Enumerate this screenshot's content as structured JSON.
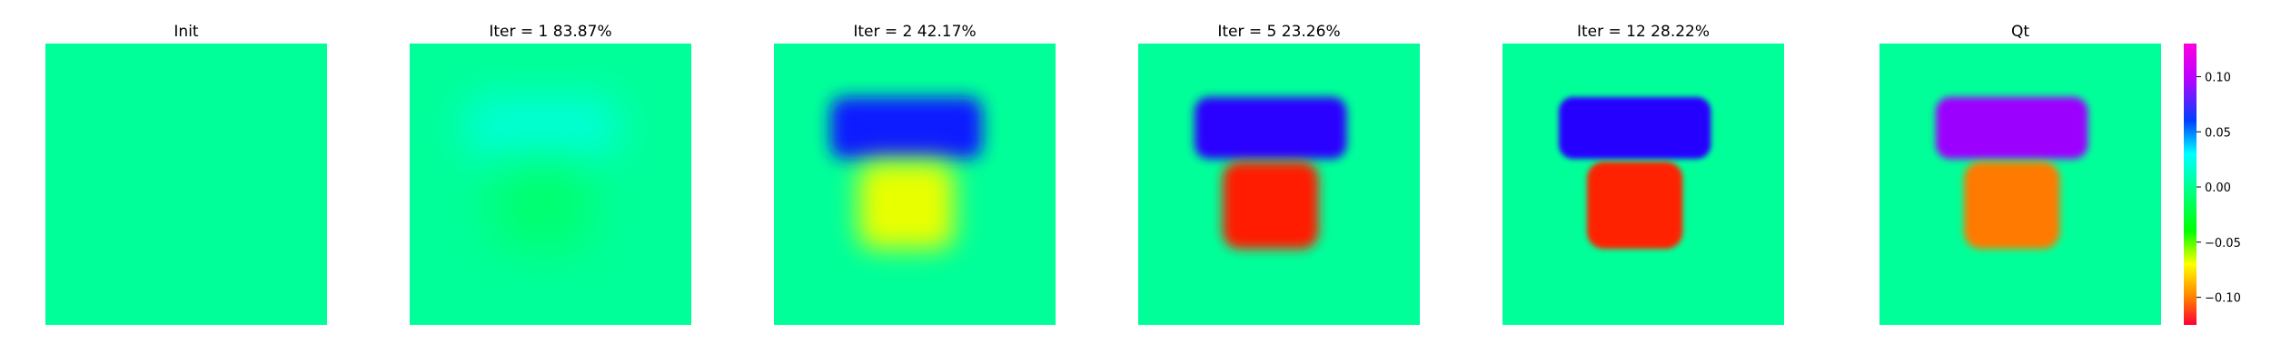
{
  "chart_data": {
    "type": "heatmap",
    "colormap": "hsv",
    "panels": [
      {
        "title": "Init",
        "shapes": []
      },
      {
        "title": "Iter = 1    83.87%",
        "shapes": [
          {
            "kind": "top-block",
            "color": "#00ffe6",
            "opacity": 0.8,
            "blur": 22
          },
          {
            "kind": "bottom-block",
            "color": "#00ff4c",
            "opacity": 0.55,
            "blur": 26
          }
        ]
      },
      {
        "title": "Iter = 2    42.17%",
        "shapes": [
          {
            "kind": "top-block",
            "color": "#0a1eff",
            "opacity": 1,
            "blur": 9
          },
          {
            "kind": "bottom-block",
            "color": "#e8ff00",
            "opacity": 1,
            "blur": 14
          }
        ]
      },
      {
        "title": "Iter = 5    23.26%",
        "shapes": [
          {
            "kind": "top-block",
            "color": "#2a00ff",
            "opacity": 1,
            "blur": 5
          },
          {
            "kind": "bottom-block",
            "color": "#ff1a00",
            "opacity": 1,
            "blur": 6
          }
        ]
      },
      {
        "title": "Iter = 12    28.22%",
        "shapes": [
          {
            "kind": "top-block",
            "color": "#2800ff",
            "opacity": 1,
            "blur": 3
          },
          {
            "kind": "bottom-block",
            "color": "#ff2200",
            "opacity": 1,
            "blur": 3
          }
        ]
      },
      {
        "title": "Qt",
        "shapes": [
          {
            "kind": "top-block",
            "color": "#9b00ff",
            "opacity": 1,
            "blur": 4
          },
          {
            "kind": "bottom-block",
            "color": "#ff7a00",
            "opacity": 1,
            "blur": 4
          }
        ]
      }
    ],
    "colorbar": {
      "ticks": [
        0.1,
        0.05,
        0.0,
        -0.05,
        -0.1
      ],
      "tick_labels": [
        "0.10",
        "0.05",
        "0.00",
        "−0.05",
        "−0.10"
      ],
      "range": [
        -0.125,
        0.13
      ],
      "colors": {
        "0.13": "#ff00dc",
        "0.10": "#bf00ff",
        "0.06": "#0040ff",
        "0.03": "#00ffff",
        "0.00": "#00ff90",
        "-0.04": "#00ff00",
        "-0.07": "#ffff00",
        "-0.10": "#ff8000",
        "-0.125": "#ff0033"
      }
    },
    "background_color": "#00ff99",
    "grid": false
  }
}
